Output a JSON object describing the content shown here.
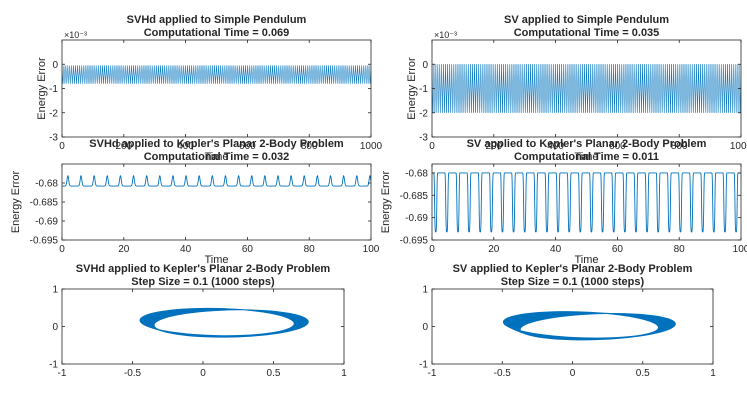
{
  "figure": {
    "line_color": "#0072BD",
    "axis_color": "#262626",
    "background": "#ffffff"
  },
  "chart_data": [
    {
      "id": "svhd-pendulum-energy",
      "type": "line",
      "title": [
        "SVHd applied to Simple Pendulum",
        "Computational Time = 0.069"
      ],
      "xlabel": "Time",
      "ylabel": "Energy Error",
      "xlim": [
        0,
        1000
      ],
      "ylim": [
        -0.003,
        0.001
      ],
      "y_exponent_label": "×10⁻³",
      "xticks": [
        0,
        200,
        400,
        600,
        800,
        1000
      ],
      "xtick_labels": [
        "0",
        "200",
        "400",
        "600",
        "800",
        "1000"
      ],
      "yticks": [
        -0.003,
        -0.002,
        -0.001,
        0
      ],
      "ytick_labels": [
        "-3",
        "-2",
        "-1",
        "0"
      ],
      "signal": {
        "kind": "dense_oscillation",
        "x_range": [
          0,
          1000
        ],
        "min": -0.0008,
        "max": -5e-05,
        "cycles": 160
      }
    },
    {
      "id": "sv-pendulum-energy",
      "type": "line",
      "title": [
        "SV applied to Simple Pendulum",
        "Computational Time = 0.035"
      ],
      "xlabel": "Time",
      "ylabel": "Energy Error",
      "xlim": [
        0,
        1000
      ],
      "ylim": [
        -0.003,
        0.001
      ],
      "y_exponent_label": "×10⁻³",
      "xticks": [
        0,
        200,
        400,
        600,
        800,
        1000
      ],
      "xtick_labels": [
        "0",
        "200",
        "400",
        "600",
        "800",
        "1000"
      ],
      "yticks": [
        -0.003,
        -0.002,
        -0.001,
        0
      ],
      "ytick_labels": [
        "-3",
        "-2",
        "-1",
        "0"
      ],
      "signal": {
        "kind": "dense_oscillation",
        "x_range": [
          0,
          1000
        ],
        "min": -0.002,
        "max": 0,
        "cycles": 160
      }
    },
    {
      "id": "svhd-kepler-energy",
      "type": "line",
      "title": [
        "SVHd applied to Kepler's Planar 2-Body Problem",
        "Computational Time = 0.032"
      ],
      "xlabel": "Time",
      "ylabel": "Energy Error",
      "xlim": [
        0,
        100
      ],
      "ylim": [
        -0.695,
        -0.675
      ],
      "xticks": [
        0,
        20,
        40,
        60,
        80,
        100
      ],
      "xtick_labels": [
        "0",
        "20",
        "40",
        "60",
        "80",
        "100"
      ],
      "yticks": [
        -0.695,
        -0.69,
        -0.685,
        -0.68
      ],
      "ytick_labels": [
        "-0.695",
        "-0.69",
        "-0.685",
        "-0.68"
      ],
      "signal": {
        "kind": "periodic_spikes",
        "x_range": [
          0,
          100
        ],
        "baseline": -0.6808,
        "peak": -0.6781,
        "direction": "up",
        "period": 4.25,
        "phase": 1.9
      }
    },
    {
      "id": "sv-kepler-energy",
      "type": "line",
      "title": [
        "SV applied to Kepler's Planar 2-Body Problem",
        "Computational Time = 0.011"
      ],
      "xlabel": "Time",
      "ylabel": "Energy Error",
      "xlim": [
        0,
        100
      ],
      "ylim": [
        -0.695,
        -0.678
      ],
      "xticks": [
        0,
        20,
        40,
        60,
        80,
        100
      ],
      "xtick_labels": [
        "0",
        "20",
        "40",
        "60",
        "80",
        "100"
      ],
      "yticks": [
        -0.695,
        -0.69,
        -0.685,
        -0.68
      ],
      "ytick_labels": [
        "-0.695",
        "-0.69",
        "-0.685",
        "-0.68"
      ],
      "signal": {
        "kind": "periodic_spikes",
        "x_range": [
          0,
          100
        ],
        "baseline": -0.68,
        "peak": -0.6932,
        "direction": "down",
        "period": 3.6,
        "phase": 1.2
      }
    },
    {
      "id": "svhd-kepler-orbit",
      "type": "line",
      "title": [
        "SVHd applied to Kepler's Planar 2-Body Problem",
        "Step Size = 0.1 (1000 steps)"
      ],
      "xlabel": "",
      "ylabel": "",
      "xlim": [
        -1,
        1
      ],
      "ylim": [
        -1,
        1
      ],
      "xticks": [
        -1,
        -0.5,
        0,
        0.5,
        1
      ],
      "xtick_labels": [
        "-1",
        "-0.5",
        "0",
        "0.5",
        "1"
      ],
      "yticks": [
        -1,
        0,
        1
      ],
      "ytick_labels": [
        "-1",
        "0",
        "1"
      ],
      "signal": {
        "kind": "precessing_ellipse",
        "center": [
          0.15,
          0.1
        ],
        "semi_axes": [
          0.55,
          0.36
        ],
        "tilt_deg": [
          -8,
          8
        ],
        "loops": 24,
        "drift": [
          0.1,
          -0.04
        ]
      }
    },
    {
      "id": "sv-kepler-orbit",
      "type": "line",
      "title": [
        "SV applied to Kepler's Planar 2-Body Problem",
        "Step Size = 0.1 (1000 steps)"
      ],
      "xlabel": "",
      "ylabel": "",
      "xlim": [
        -1,
        1
      ],
      "ylim": [
        -1,
        1
      ],
      "xticks": [
        -1,
        -0.5,
        0,
        0.5,
        1
      ],
      "xtick_labels": [
        "-1",
        "-0.5",
        "0",
        "0.5",
        "1"
      ],
      "yticks": [
        -1,
        0,
        1
      ],
      "ytick_labels": [
        "-1",
        "0",
        "1"
      ],
      "signal": {
        "kind": "precessing_ellipse",
        "center": [
          0.12,
          0.02
        ],
        "semi_axes": [
          0.56,
          0.34
        ],
        "tilt_deg": [
          -12,
          12
        ],
        "loops": 24,
        "drift": [
          0.12,
          -0.05
        ]
      }
    }
  ]
}
